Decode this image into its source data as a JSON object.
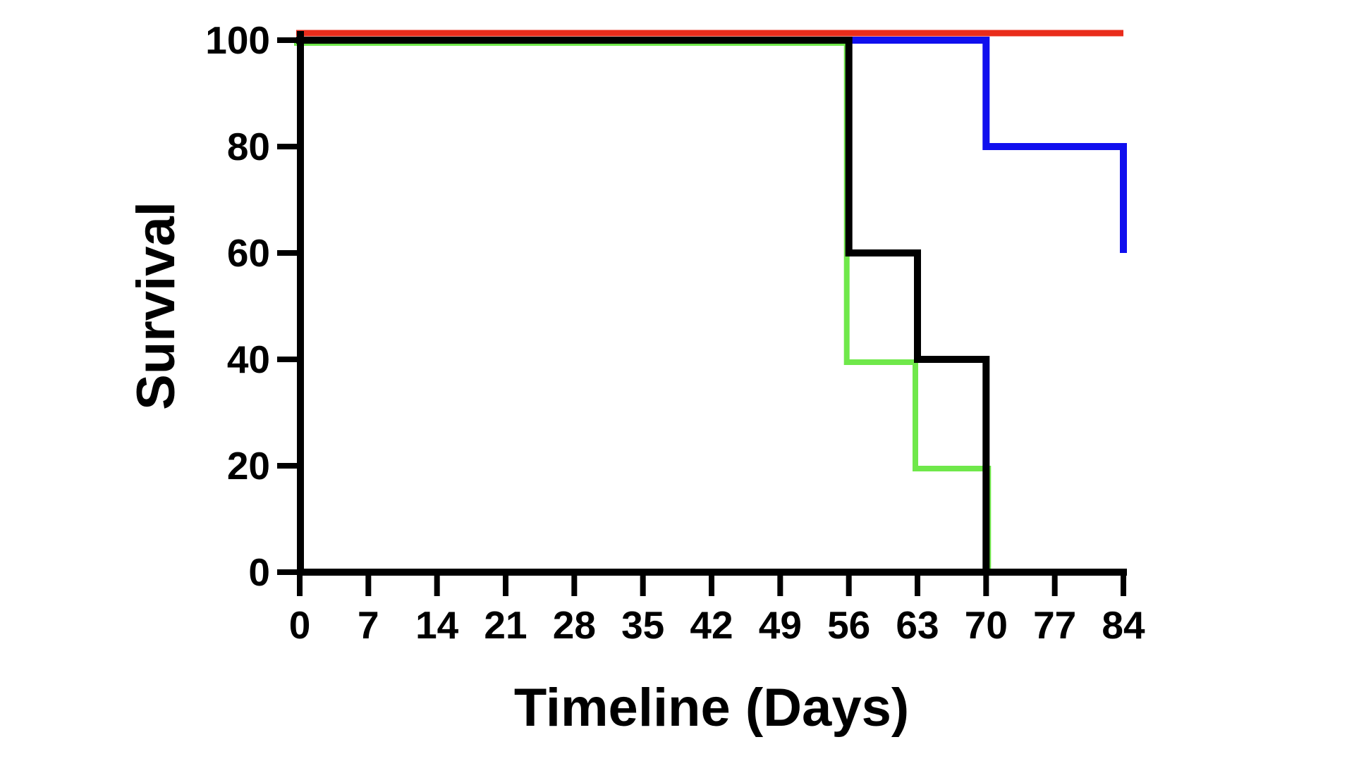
{
  "chart_data": {
    "type": "line",
    "subtype": "kaplan-meier-step-survival",
    "title": "",
    "xlabel": "Timeline (Days)",
    "ylabel": "Survival",
    "xlim": [
      0,
      84
    ],
    "ylim": [
      0,
      100
    ],
    "x_ticks": [
      0,
      7,
      14,
      21,
      28,
      35,
      42,
      49,
      56,
      63,
      70,
      77,
      84
    ],
    "y_ticks": [
      0,
      20,
      40,
      60,
      80,
      100
    ],
    "grid": false,
    "legend_position": "none",
    "axis_color": "#000000",
    "background_color": "#ffffff",
    "series": [
      {
        "name": "blue-group",
        "color": "#100FEE",
        "points": [
          [
            0,
            100
          ],
          [
            70,
            100
          ],
          [
            70,
            80
          ],
          [
            84,
            80
          ],
          [
            84,
            60
          ]
        ]
      },
      {
        "name": "green-group",
        "color": "#6FE84A",
        "points": [
          [
            0,
            100
          ],
          [
            56,
            100
          ],
          [
            56,
            40
          ],
          [
            63,
            40
          ],
          [
            63,
            20
          ],
          [
            70,
            20
          ],
          [
            70,
            0
          ]
        ]
      },
      {
        "name": "black-group",
        "color": "#000000",
        "points": [
          [
            0,
            100
          ],
          [
            56,
            100
          ],
          [
            56,
            60
          ],
          [
            63,
            60
          ],
          [
            63,
            40
          ],
          [
            70,
            40
          ],
          [
            70,
            0
          ]
        ]
      },
      {
        "name": "red-group",
        "color": "#E92C1B",
        "points": [
          [
            0,
            100
          ],
          [
            84,
            100
          ]
        ]
      }
    ]
  }
}
